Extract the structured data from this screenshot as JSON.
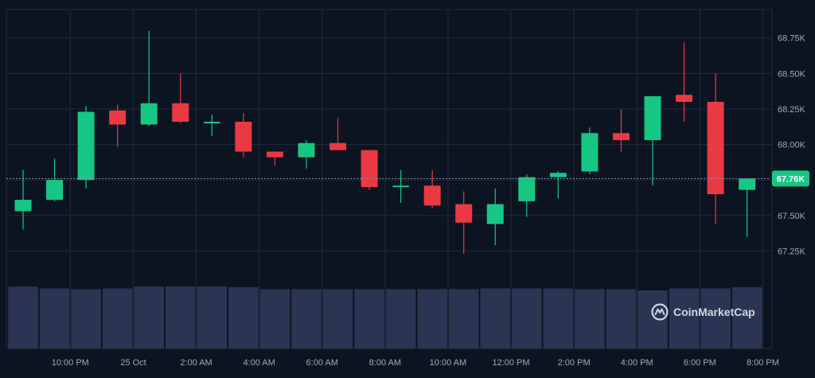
{
  "chart_data": {
    "type": "candlestick",
    "title": "",
    "xlabel": "",
    "ylabel": "",
    "ylim": [
      67.0,
      68.95
    ],
    "y_ticks": [
      {
        "value": 68.75,
        "label": "68.75K"
      },
      {
        "value": 68.5,
        "label": "68.50K"
      },
      {
        "value": 68.25,
        "label": "68.25K"
      },
      {
        "value": 68.0,
        "label": "68.00K"
      },
      {
        "value": 67.5,
        "label": "67.50K"
      },
      {
        "value": 67.25,
        "label": "67.25K"
      }
    ],
    "x_ticks": [
      {
        "index": 1,
        "label": "10:00 PM"
      },
      {
        "index": 3,
        "label": "25 Oct"
      },
      {
        "index": 5,
        "label": "2:00 AM"
      },
      {
        "index": 7,
        "label": "4:00 AM"
      },
      {
        "index": 9,
        "label": "6:00 AM"
      },
      {
        "index": 11,
        "label": "8:00 AM"
      },
      {
        "index": 13,
        "label": "10:00 AM"
      },
      {
        "index": 15,
        "label": "12:00 PM"
      },
      {
        "index": 17,
        "label": "2:00 PM"
      },
      {
        "index": 19,
        "label": "4:00 PM"
      },
      {
        "index": 21,
        "label": "6:00 PM"
      },
      {
        "index": 23,
        "label": "8:00 PM"
      }
    ],
    "current_price": {
      "value": 67.76,
      "label": "67.76K"
    },
    "candles": [
      {
        "open": 67.53,
        "close": 67.61,
        "high": 67.82,
        "low": 67.4
      },
      {
        "open": 67.61,
        "close": 67.75,
        "high": 67.9,
        "low": 67.6
      },
      {
        "open": 67.75,
        "close": 68.23,
        "high": 68.27,
        "low": 67.69
      },
      {
        "open": 68.24,
        "close": 68.14,
        "high": 68.28,
        "low": 67.98
      },
      {
        "open": 68.14,
        "close": 68.29,
        "high": 68.8,
        "low": 68.13
      },
      {
        "open": 68.29,
        "close": 68.16,
        "high": 68.5,
        "low": 68.15
      },
      {
        "open": 68.16,
        "close": 68.16,
        "high": 68.21,
        "low": 68.06
      },
      {
        "open": 68.16,
        "close": 67.95,
        "high": 68.22,
        "low": 67.91
      },
      {
        "open": 67.95,
        "close": 67.91,
        "high": 67.95,
        "low": 67.85
      },
      {
        "open": 67.91,
        "close": 68.01,
        "high": 68.03,
        "low": 67.83
      },
      {
        "open": 68.01,
        "close": 67.96,
        "high": 68.19,
        "low": 67.96
      },
      {
        "open": 67.96,
        "close": 67.7,
        "high": 67.96,
        "low": 67.68
      },
      {
        "open": 67.7,
        "close": 67.71,
        "high": 67.82,
        "low": 67.59
      },
      {
        "open": 67.71,
        "close": 67.57,
        "high": 67.82,
        "low": 67.55
      },
      {
        "open": 67.58,
        "close": 67.45,
        "high": 67.67,
        "low": 67.23
      },
      {
        "open": 67.44,
        "close": 67.58,
        "high": 67.69,
        "low": 67.29
      },
      {
        "open": 67.6,
        "close": 67.77,
        "high": 67.79,
        "low": 67.49
      },
      {
        "open": 67.77,
        "close": 67.8,
        "high": 67.81,
        "low": 67.62
      },
      {
        "open": 67.81,
        "close": 68.08,
        "high": 68.12,
        "low": 67.79
      },
      {
        "open": 68.08,
        "close": 68.03,
        "high": 68.25,
        "low": 67.95
      },
      {
        "open": 68.03,
        "close": 68.34,
        "high": 68.34,
        "low": 67.71
      },
      {
        "open": 68.35,
        "close": 68.3,
        "high": 68.72,
        "low": 68.16
      },
      {
        "open": 68.3,
        "close": 67.65,
        "high": 68.5,
        "low": 67.44
      },
      {
        "open": 67.68,
        "close": 67.76,
        "high": 67.76,
        "low": 67.35
      }
    ],
    "volume": [
      0.95,
      0.92,
      0.91,
      0.92,
      0.95,
      0.95,
      0.95,
      0.94,
      0.91,
      0.91,
      0.91,
      0.91,
      0.91,
      0.91,
      0.91,
      0.92,
      0.92,
      0.92,
      0.91,
      0.91,
      0.89,
      0.92,
      0.92,
      0.94
    ],
    "grid": true,
    "colors": {
      "up": "#16c784",
      "down": "#ea3943",
      "background": "#0d1421",
      "grid": "#222a3a",
      "volume": "#2b3553",
      "text": "#a1a7bb"
    }
  },
  "brand": {
    "name": "CoinMarketCap",
    "icon": "coinmarketcap-logo-icon"
  }
}
